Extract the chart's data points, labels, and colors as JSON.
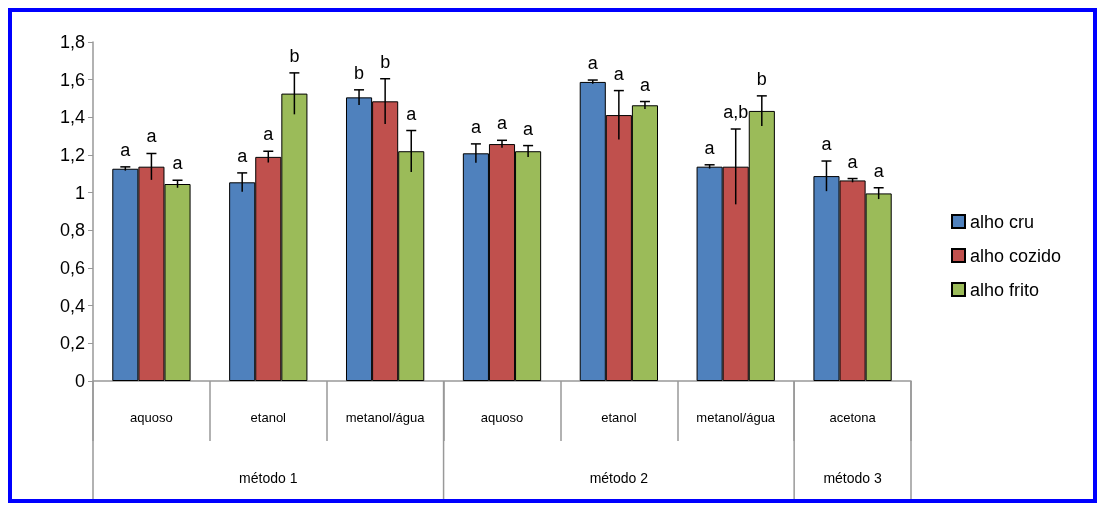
{
  "chart_data": {
    "type": "bar",
    "categories": [
      "aquoso",
      "etanol",
      "metanol/água",
      "aquoso",
      "etanol",
      "metanol/água",
      "acetona"
    ],
    "series": [
      {
        "name": "alho cru",
        "color": "#4f81bd",
        "values": [
          1.127,
          1.055,
          1.506,
          1.209,
          1.588,
          1.138,
          1.088
        ],
        "errors": [
          0.01,
          0.05,
          0.04,
          0.05,
          0.01,
          0.01,
          0.08
        ],
        "value_labels": [
          "a",
          "a",
          "b",
          "a",
          "a",
          "a",
          "a"
        ]
      },
      {
        "name": "alho cozido",
        "color": "#c0504d",
        "values": [
          1.138,
          1.19,
          1.485,
          1.258,
          1.412,
          1.138,
          1.065
        ],
        "errors": [
          0.07,
          0.03,
          0.12,
          0.02,
          0.13,
          0.2,
          0.01
        ],
        "value_labels": [
          "a",
          "a",
          "b",
          "a",
          "a",
          "a,b",
          "a"
        ]
      },
      {
        "name": "alho frito",
        "color": "#9bbb59",
        "values": [
          1.046,
          1.526,
          1.22,
          1.22,
          1.464,
          1.434,
          0.996
        ],
        "errors": [
          0.02,
          0.11,
          0.11,
          0.03,
          0.02,
          0.08,
          0.03
        ],
        "value_labels": [
          "a",
          "b",
          "a",
          "a",
          "a",
          "b",
          "a"
        ]
      }
    ],
    "annotations": [
      "método 1",
      "método 2",
      "método 3"
    ],
    "ylim": [
      0,
      1.8
    ],
    "yticks": [
      0,
      {
        "value": 0.2,
        "label": "0,2"
      },
      {
        "value": 0.4,
        "label": "0,4"
      },
      {
        "value": 0.6,
        "label": "0,6"
      },
      {
        "value": 0.8,
        "label": "0,8"
      },
      1,
      {
        "value": 1.2,
        "label": "1,2"
      },
      {
        "value": 1.4,
        "label": "1,4"
      },
      {
        "value": 1.6,
        "label": "1,6"
      },
      {
        "value": 1.8,
        "label": "1,8"
      }
    ],
    "grid": false,
    "legend": "right"
  }
}
